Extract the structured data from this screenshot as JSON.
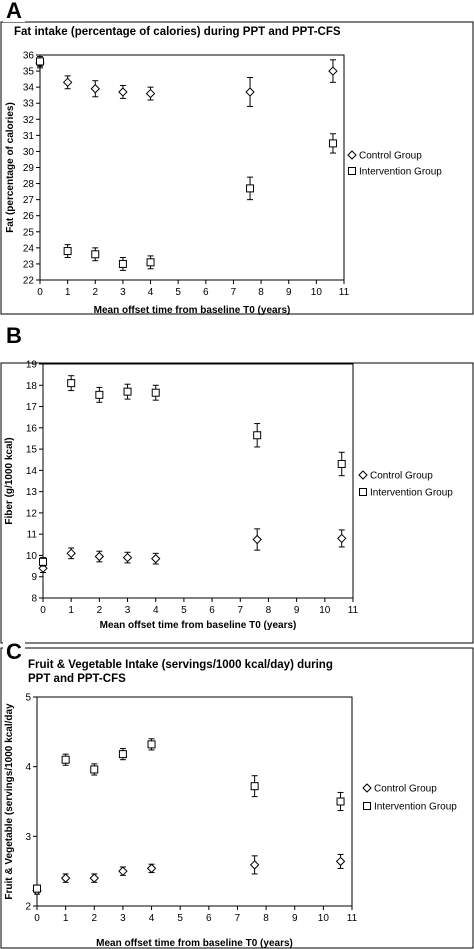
{
  "chart_data": [
    {
      "panel": "A",
      "type": "scatter",
      "title": "Fat intake (percentage of calories) during PPT and PPT-CFS",
      "xlabel": "Mean offset time from baseline T0 (years)",
      "ylabel": "Fat (percentage of calories)",
      "xlim": [
        0,
        11
      ],
      "ylim": [
        22,
        36
      ],
      "xticks": [
        "0",
        "1",
        "2",
        "3",
        "4",
        "5",
        "6",
        "7",
        "8",
        "9",
        "10",
        "11"
      ],
      "yticks": [
        "22",
        "23",
        "24",
        "25",
        "26",
        "27",
        "28",
        "29",
        "30",
        "31",
        "32",
        "33",
        "34",
        "35",
        "36"
      ],
      "grid": false,
      "legend": "right",
      "series": [
        {
          "name": "Control Group",
          "marker": "diamond",
          "points": [
            {
              "x": 0,
              "y": 35.5,
              "err": 0.3
            },
            {
              "x": 1,
              "y": 34.3,
              "err": 0.4
            },
            {
              "x": 2,
              "y": 33.9,
              "err": 0.5
            },
            {
              "x": 3,
              "y": 33.7,
              "err": 0.4
            },
            {
              "x": 4,
              "y": 33.6,
              "err": 0.4
            },
            {
              "x": 7.6,
              "y": 33.7,
              "err": 0.9
            },
            {
              "x": 10.6,
              "y": 35.0,
              "err": 0.7
            }
          ]
        },
        {
          "name": "Intervention Group",
          "marker": "square",
          "points": [
            {
              "x": 0,
              "y": 35.6,
              "err": 0.3
            },
            {
              "x": 1,
              "y": 23.8,
              "err": 0.4
            },
            {
              "x": 2,
              "y": 23.6,
              "err": 0.4
            },
            {
              "x": 3,
              "y": 23.0,
              "err": 0.4
            },
            {
              "x": 4,
              "y": 23.1,
              "err": 0.4
            },
            {
              "x": 7.6,
              "y": 27.7,
              "err": 0.7
            },
            {
              "x": 10.6,
              "y": 30.5,
              "err": 0.6
            }
          ]
        }
      ]
    },
    {
      "panel": "B",
      "type": "scatter",
      "title": "Fiber intake (g/1000 kcal) during PPT and PPT-CFS",
      "xlabel": "Mean offset time from baseline T0 (years)",
      "ylabel": "Fiber (g/1000 kcal)",
      "xlim": [
        0,
        11
      ],
      "ylim": [
        8,
        19
      ],
      "xticks": [
        "0",
        "1",
        "2",
        "3",
        "4",
        "5",
        "6",
        "7",
        "8",
        "9",
        "10",
        "11"
      ],
      "yticks": [
        "8",
        "9",
        "10",
        "11",
        "12",
        "13",
        "14",
        "15",
        "16",
        "17",
        "18",
        "19"
      ],
      "grid": false,
      "legend": "right",
      "series": [
        {
          "name": "Control Group",
          "marker": "diamond",
          "points": [
            {
              "x": 0,
              "y": 9.4,
              "err": 0.2
            },
            {
              "x": 1,
              "y": 10.1,
              "err": 0.25
            },
            {
              "x": 2,
              "y": 9.95,
              "err": 0.25
            },
            {
              "x": 3,
              "y": 9.9,
              "err": 0.25
            },
            {
              "x": 4,
              "y": 9.85,
              "err": 0.25
            },
            {
              "x": 7.6,
              "y": 10.75,
              "err": 0.5
            },
            {
              "x": 10.6,
              "y": 10.8,
              "err": 0.4
            }
          ]
        },
        {
          "name": "Intervention Group",
          "marker": "square",
          "points": [
            {
              "x": 0,
              "y": 9.7,
              "err": 0.2
            },
            {
              "x": 1,
              "y": 18.1,
              "err": 0.35
            },
            {
              "x": 2,
              "y": 17.55,
              "err": 0.35
            },
            {
              "x": 3,
              "y": 17.7,
              "err": 0.35
            },
            {
              "x": 4,
              "y": 17.65,
              "err": 0.35
            },
            {
              "x": 7.6,
              "y": 15.65,
              "err": 0.55
            },
            {
              "x": 10.6,
              "y": 14.3,
              "err": 0.55
            }
          ]
        }
      ]
    },
    {
      "panel": "C",
      "type": "scatter",
      "title": "Fruit & Vegetable Intake (servings/1000 kcal/day) during PPT and PPT-CFS",
      "title_lines": [
        "Fruit & Vegetable Intake (servings/1000 kcal/day) during",
        "PPT and PPT-CFS"
      ],
      "xlabel": "Mean offset time from baseline T0 (years)",
      "ylabel": "Fruit & Vegetable (servings/1000 kcal/day",
      "xlim": [
        0,
        11
      ],
      "ylim": [
        2,
        5
      ],
      "xticks": [
        "0",
        "1",
        "2",
        "3",
        "4",
        "5",
        "6",
        "7",
        "8",
        "9",
        "10",
        "11"
      ],
      "yticks": [
        "2",
        "3",
        "4",
        "5"
      ],
      "grid": false,
      "legend": "right",
      "series": [
        {
          "name": "Control Group",
          "marker": "diamond",
          "points": [
            {
              "x": 0,
              "y": 2.22,
              "err": 0.05
            },
            {
              "x": 1,
              "y": 2.4,
              "err": 0.06
            },
            {
              "x": 2,
              "y": 2.4,
              "err": 0.06
            },
            {
              "x": 3,
              "y": 2.5,
              "err": 0.06
            },
            {
              "x": 4,
              "y": 2.54,
              "err": 0.06
            },
            {
              "x": 7.6,
              "y": 2.59,
              "err": 0.13
            },
            {
              "x": 10.6,
              "y": 2.64,
              "err": 0.1
            }
          ]
        },
        {
          "name": "Intervention Group",
          "marker": "square",
          "points": [
            {
              "x": 0,
              "y": 2.25,
              "err": 0.05
            },
            {
              "x": 1,
              "y": 4.1,
              "err": 0.08
            },
            {
              "x": 2,
              "y": 3.96,
              "err": 0.08
            },
            {
              "x": 3,
              "y": 4.18,
              "err": 0.08
            },
            {
              "x": 4,
              "y": 4.32,
              "err": 0.08
            },
            {
              "x": 7.6,
              "y": 3.72,
              "err": 0.15
            },
            {
              "x": 10.6,
              "y": 3.5,
              "err": 0.13
            }
          ]
        }
      ]
    }
  ]
}
